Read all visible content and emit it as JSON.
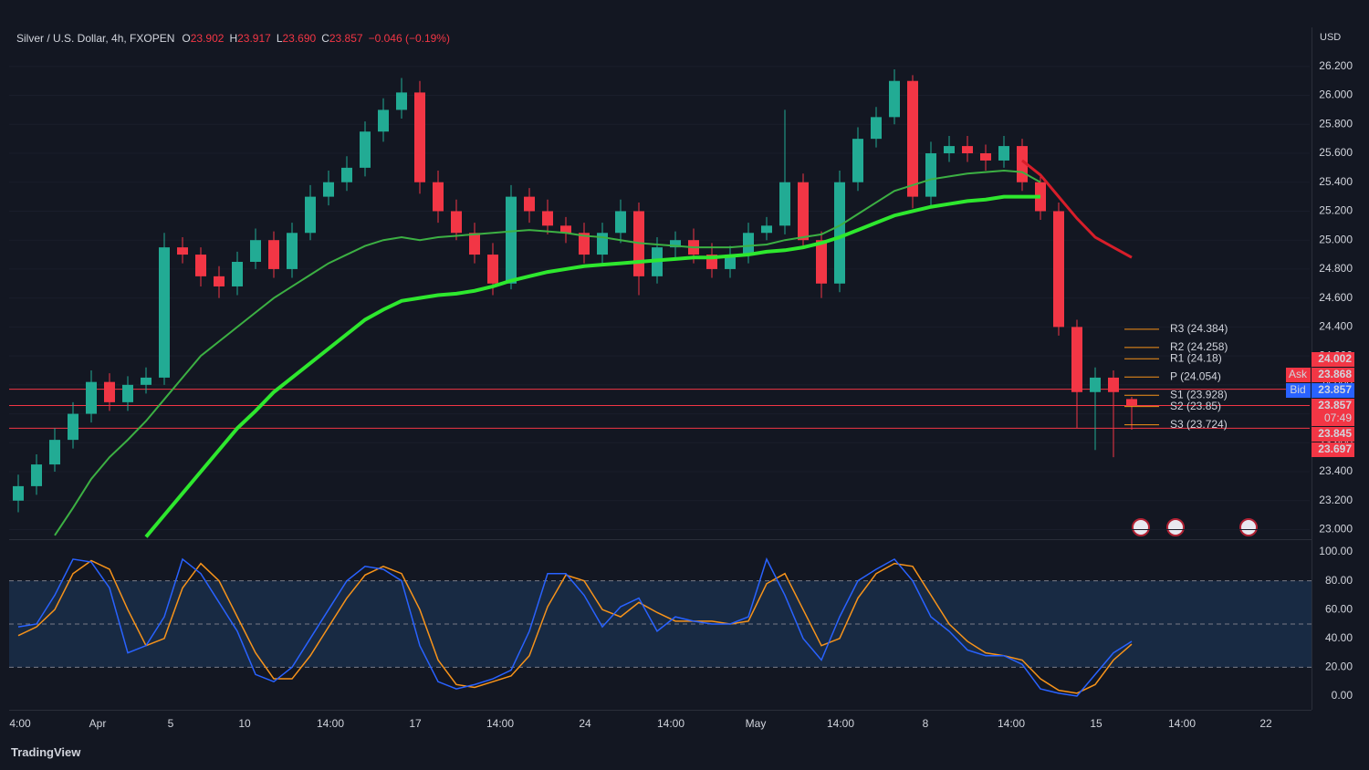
{
  "header": {
    "symbol": "Silver / U.S. Dollar, 4h, FXOPEN",
    "ohlc": [
      {
        "key": "O",
        "value": "23.902"
      },
      {
        "key": "H",
        "value": "23.917"
      },
      {
        "key": "L",
        "value": "23.690"
      },
      {
        "key": "C",
        "value": "23.857"
      }
    ],
    "change": "−0.046 (−0.19%)",
    "currency": "USD"
  },
  "chart_data": [
    {
      "type": "candlestick",
      "up_color": "#22ab94",
      "down_color": "#f23645",
      "open": [
        23.2,
        23.3,
        23.45,
        23.62,
        23.8,
        24.02,
        23.88,
        24.0,
        24.05,
        24.95,
        24.9,
        24.75,
        24.68,
        24.85,
        25.0,
        24.8,
        25.05,
        25.3,
        25.4,
        25.5,
        25.75,
        25.9,
        26.02,
        25.4,
        25.2,
        25.05,
        24.9,
        24.7,
        25.3,
        25.2,
        25.1,
        25.05,
        24.9,
        25.05,
        25.2,
        24.75,
        24.95,
        25.0,
        24.9,
        24.8,
        24.9,
        25.05,
        25.1,
        25.4,
        25.0,
        24.7,
        25.4,
        25.7,
        25.85,
        26.1,
        25.3,
        25.6,
        25.65,
        25.6,
        25.55,
        25.65,
        25.4,
        25.2,
        24.4,
        23.95,
        24.05,
        23.902
      ],
      "high": [
        23.38,
        23.52,
        23.7,
        23.88,
        24.1,
        24.08,
        24.06,
        24.12,
        25.05,
        25.02,
        24.95,
        24.82,
        24.92,
        25.08,
        25.06,
        25.12,
        25.38,
        25.48,
        25.58,
        25.82,
        25.98,
        26.12,
        26.1,
        25.48,
        25.28,
        25.12,
        24.98,
        25.38,
        25.36,
        25.28,
        25.16,
        25.12,
        25.12,
        25.28,
        25.26,
        25.02,
        25.06,
        25.08,
        24.98,
        24.96,
        25.12,
        25.16,
        25.9,
        25.46,
        25.06,
        25.48,
        25.78,
        25.92,
        26.18,
        26.14,
        25.68,
        25.72,
        25.72,
        25.66,
        25.72,
        25.7,
        25.46,
        25.26,
        24.45,
        24.12,
        24.1,
        23.917
      ],
      "low": [
        23.12,
        23.24,
        23.4,
        23.56,
        23.74,
        23.82,
        23.82,
        23.94,
        24.0,
        24.84,
        24.68,
        24.6,
        24.62,
        24.8,
        24.74,
        24.74,
        25.0,
        25.24,
        25.34,
        25.44,
        25.68,
        25.84,
        25.32,
        25.12,
        25.0,
        24.84,
        24.62,
        24.66,
        25.12,
        25.04,
        24.98,
        24.84,
        24.84,
        24.98,
        24.62,
        24.7,
        24.88,
        24.84,
        24.74,
        24.74,
        24.84,
        25.0,
        25.04,
        24.94,
        24.6,
        24.64,
        25.34,
        25.64,
        25.8,
        25.22,
        25.24,
        25.54,
        25.54,
        25.48,
        25.5,
        25.34,
        25.14,
        24.34,
        23.7,
        23.55,
        23.5,
        23.69
      ],
      "close": [
        23.3,
        23.45,
        23.62,
        23.8,
        24.02,
        23.88,
        24.0,
        24.05,
        24.95,
        24.9,
        24.75,
        24.68,
        24.85,
        25.0,
        24.8,
        25.05,
        25.3,
        25.4,
        25.5,
        25.75,
        25.9,
        26.02,
        25.4,
        25.2,
        25.05,
        24.9,
        24.7,
        25.3,
        25.2,
        25.1,
        25.05,
        24.9,
        25.05,
        25.2,
        24.75,
        24.95,
        25.0,
        24.9,
        24.8,
        24.9,
        25.05,
        25.1,
        25.4,
        25.0,
        24.7,
        25.4,
        25.7,
        25.85,
        26.1,
        25.3,
        25.6,
        25.65,
        25.6,
        25.55,
        25.65,
        25.4,
        25.2,
        24.4,
        23.95,
        24.05,
        23.95,
        23.857
      ],
      "overlays": [
        {
          "color": "#2ee82e",
          "width": 4,
          "values": [
            null,
            null,
            null,
            null,
            null,
            null,
            null,
            22.95,
            23.1,
            23.25,
            23.4,
            23.55,
            23.7,
            23.82,
            23.95,
            24.05,
            24.15,
            24.25,
            24.35,
            24.45,
            24.52,
            24.58,
            24.6,
            24.62,
            24.63,
            24.65,
            24.68,
            24.72,
            24.75,
            24.78,
            24.8,
            24.82,
            24.83,
            24.84,
            24.85,
            24.86,
            24.87,
            24.88,
            24.88,
            24.89,
            24.9,
            24.92,
            24.93,
            24.95,
            24.98,
            25.02,
            25.07,
            25.12,
            25.17,
            25.2,
            25.23,
            25.25,
            25.27,
            25.28,
            25.3,
            25.3,
            25.3,
            null,
            null,
            null,
            null,
            null
          ]
        },
        {
          "color": "#3cb043",
          "width": 2,
          "values": [
            null,
            null,
            22.96,
            23.15,
            23.35,
            23.5,
            23.62,
            23.75,
            23.9,
            24.05,
            24.2,
            24.3,
            24.4,
            24.5,
            24.6,
            24.68,
            24.76,
            24.84,
            24.9,
            24.96,
            25.0,
            25.02,
            25.0,
            25.02,
            25.03,
            25.04,
            25.05,
            25.06,
            25.07,
            25.06,
            25.05,
            25.03,
            25.02,
            25.0,
            24.98,
            24.97,
            24.96,
            24.95,
            24.95,
            24.95,
            24.96,
            24.97,
            25.0,
            25.02,
            25.04,
            25.1,
            25.18,
            25.26,
            25.34,
            25.38,
            25.42,
            25.44,
            25.46,
            25.47,
            25.48,
            25.47,
            25.4,
            null,
            null,
            null,
            null,
            null
          ]
        },
        {
          "color": "#d81e2a",
          "width": 3,
          "values": [
            null,
            null,
            null,
            null,
            null,
            null,
            null,
            null,
            null,
            null,
            null,
            null,
            null,
            null,
            null,
            null,
            null,
            null,
            null,
            null,
            null,
            null,
            null,
            null,
            null,
            null,
            null,
            null,
            null,
            null,
            null,
            null,
            null,
            null,
            null,
            null,
            null,
            null,
            null,
            null,
            null,
            null,
            null,
            null,
            null,
            null,
            null,
            null,
            null,
            null,
            null,
            null,
            null,
            null,
            null,
            25.55,
            25.45,
            25.3,
            25.15,
            25.02,
            24.95,
            24.88
          ]
        }
      ],
      "xlim": [
        -0.5,
        70.75
      ],
      "xticks": [
        {
          "value": 0.1,
          "label": "4:00"
        },
        {
          "value": 4.35,
          "label": "Apr"
        },
        {
          "value": 8.35,
          "label": "5"
        },
        {
          "value": 12.4,
          "label": "10"
        },
        {
          "value": 17.1,
          "label": "14:00"
        },
        {
          "value": 21.75,
          "label": "17"
        },
        {
          "value": 26.4,
          "label": "14:00"
        },
        {
          "value": 31.05,
          "label": "24"
        },
        {
          "value": 35.75,
          "label": "14:00"
        },
        {
          "value": 40.4,
          "label": "May"
        },
        {
          "value": 45.05,
          "label": "14:00"
        },
        {
          "value": 49.7,
          "label": "8"
        },
        {
          "value": 54.4,
          "label": "14:00"
        },
        {
          "value": 59.05,
          "label": "15"
        },
        {
          "value": 63.75,
          "label": "14:00"
        },
        {
          "value": 68.35,
          "label": "22"
        }
      ],
      "ylim": [
        22.94,
        26.47
      ],
      "yticks": [
        {
          "value": 23.0,
          "label": "23.000"
        },
        {
          "value": 23.2,
          "label": "23.200"
        },
        {
          "value": 23.4,
          "label": "23.400"
        },
        {
          "value": 23.6,
          "label": "23.600"
        },
        {
          "value": 23.8,
          "label": "23.800"
        },
        {
          "value": 24.0,
          "label": "24.000"
        },
        {
          "value": 24.2,
          "label": "24.200"
        },
        {
          "value": 24.4,
          "label": "24.400"
        },
        {
          "value": 24.6,
          "label": "24.600"
        },
        {
          "value": 24.8,
          "label": "24.800"
        },
        {
          "value": 25.0,
          "label": "25.000"
        },
        {
          "value": 25.2,
          "label": "25.200"
        },
        {
          "value": 25.4,
          "label": "25.400"
        },
        {
          "value": 25.6,
          "label": "25.600"
        },
        {
          "value": 25.8,
          "label": "25.800"
        },
        {
          "value": 26.0,
          "label": "26.000"
        },
        {
          "value": 26.2,
          "label": "26.200"
        }
      ],
      "pivot_color": "#f7931a",
      "pivots": [
        {
          "value": 24.384,
          "label": "R3 (24.384)"
        },
        {
          "value": 24.258,
          "label": "R2 (24.258)"
        },
        {
          "value": 24.18,
          "label": "R1 (24.18)"
        },
        {
          "value": 24.054,
          "label": "P (24.054)"
        },
        {
          "value": 23.928,
          "label": "S1 (23.928)"
        },
        {
          "value": 23.85,
          "label": "S2 (23.85)"
        },
        {
          "value": 23.724,
          "label": "S3 (23.724)"
        }
      ],
      "level_color": "#f23645",
      "levels": [
        23.97,
        23.857,
        23.7
      ],
      "price_tags": [
        {
          "label": "24.002",
          "color": "#f23645"
        },
        {
          "prefix": "Ask",
          "label": "23.868",
          "color": "#f23645"
        },
        {
          "prefix": "Bid",
          "label": "23.857",
          "color": "#2962ff"
        },
        {
          "label": "23.857",
          "sub": "07:49",
          "color": "#f23645"
        },
        {
          "label": "23.845",
          "color": "#f23645"
        },
        {
          "label": "23.697",
          "color": "#f23645"
        }
      ]
    },
    {
      "type": "line",
      "series": [
        {
          "color": "#2962ff",
          "values": [
            48,
            50,
            70,
            95,
            93,
            75,
            30,
            35,
            55,
            95,
            85,
            65,
            45,
            15,
            10,
            20,
            40,
            60,
            80,
            90,
            88,
            80,
            35,
            10,
            5,
            8,
            12,
            18,
            45,
            85,
            85,
            70,
            48,
            62,
            68,
            45,
            55,
            52,
            50,
            50,
            55,
            95,
            70,
            40,
            25,
            55,
            80,
            88,
            95,
            80,
            55,
            45,
            32,
            28,
            28,
            22,
            5,
            2,
            0,
            15,
            30,
            38
          ]
        },
        {
          "color": "#f7931a",
          "values": [
            42,
            48,
            60,
            85,
            94,
            88,
            60,
            35,
            40,
            75,
            92,
            80,
            55,
            30,
            12,
            12,
            28,
            48,
            68,
            84,
            90,
            85,
            60,
            25,
            8,
            6,
            10,
            14,
            28,
            62,
            84,
            80,
            60,
            55,
            65,
            58,
            52,
            52,
            52,
            50,
            52,
            78,
            85,
            60,
            35,
            40,
            68,
            85,
            92,
            90,
            70,
            50,
            38,
            30,
            28,
            25,
            12,
            4,
            2,
            8,
            25,
            36
          ]
        }
      ],
      "ylim": [
        -9.5,
        107.6
      ],
      "yticks": [
        {
          "value": 0,
          "label": "0.00"
        },
        {
          "value": 20,
          "label": "20.00"
        },
        {
          "value": 40,
          "label": "40.00"
        },
        {
          "value": 60,
          "label": "60.00"
        },
        {
          "value": 80,
          "label": "80.00"
        },
        {
          "value": 100,
          "label": "100.00"
        }
      ],
      "band": [
        20,
        80
      ],
      "band_color": "#1e3a5f",
      "levels": [
        20,
        50,
        80
      ]
    }
  ],
  "footer": {
    "brand": "TradingView"
  }
}
